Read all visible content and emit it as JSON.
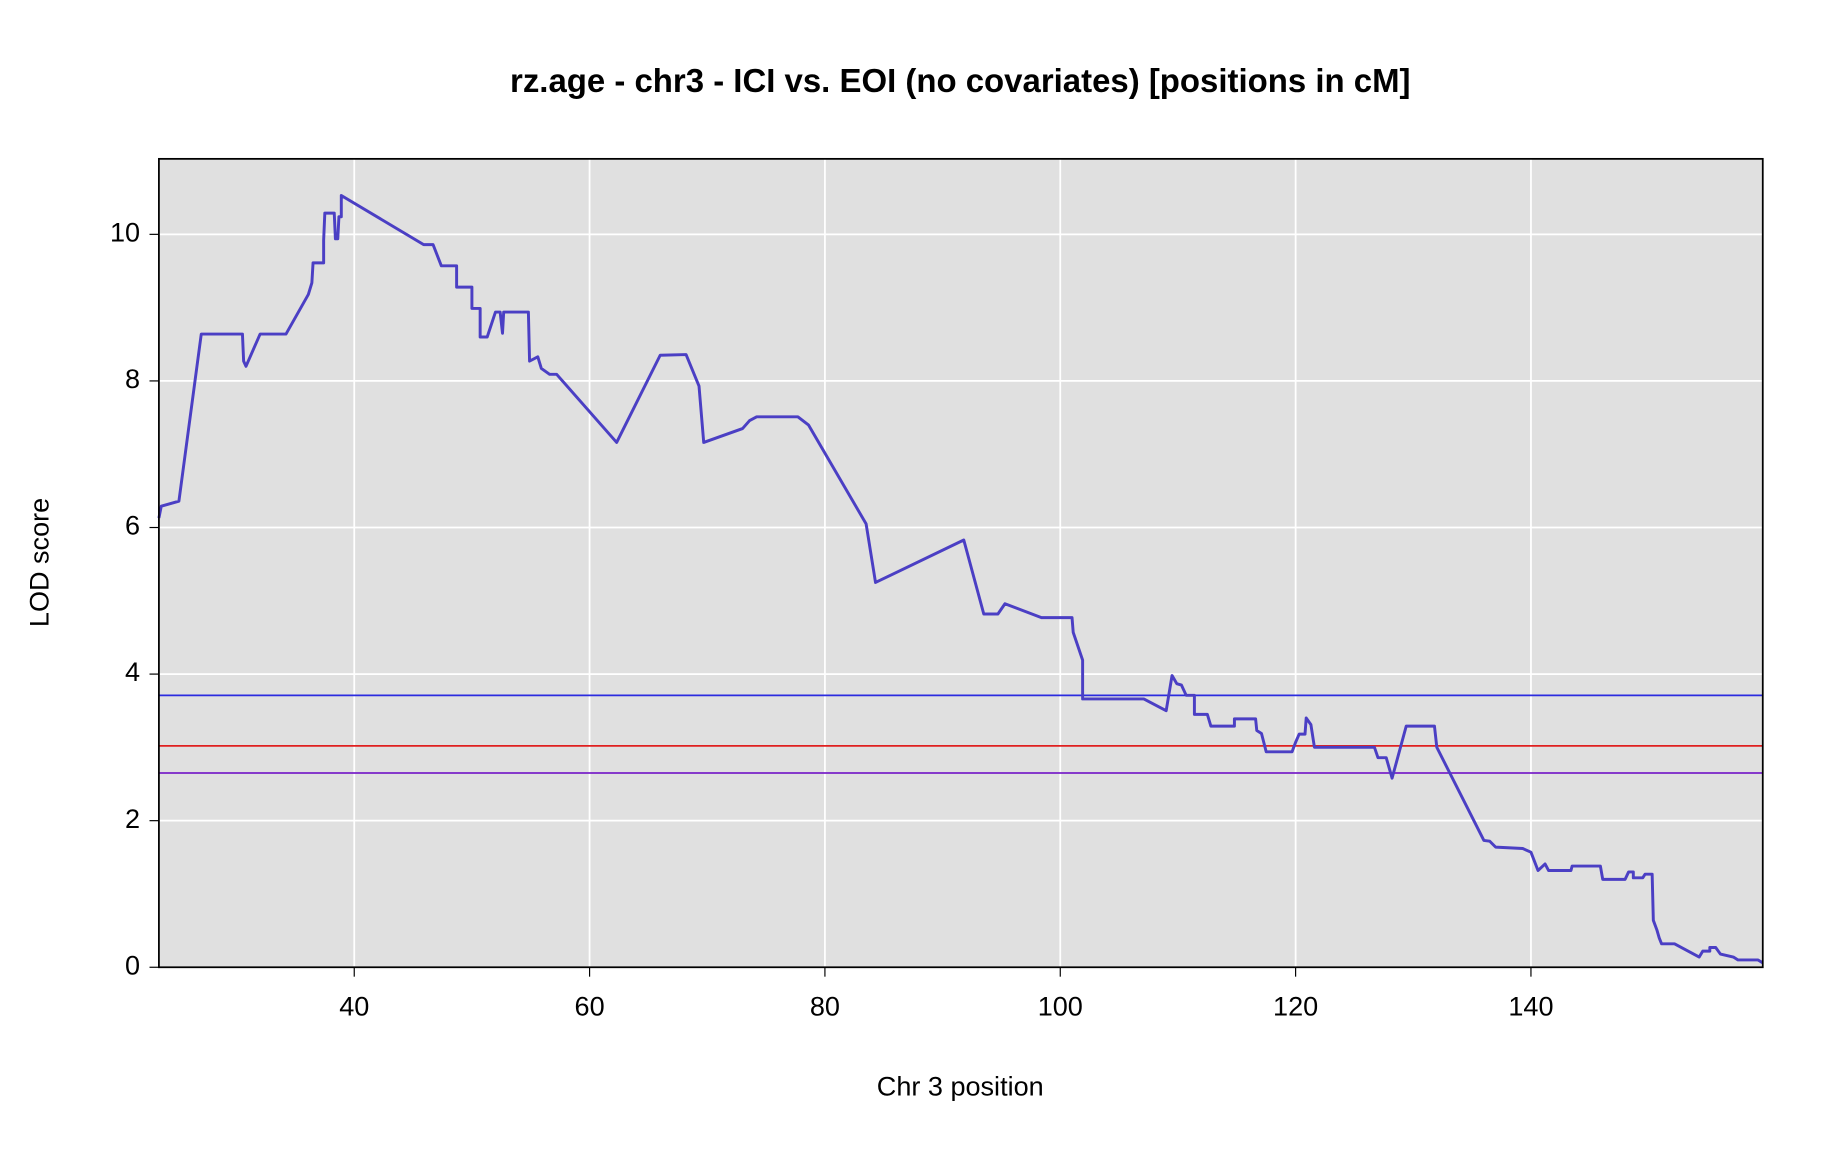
{
  "chart_data": {
    "type": "line",
    "title": "rz.age - chr3 - ICI vs. EOI (no covariates) [positions in cM]",
    "x_label": "Chr 3 position",
    "y_label": "LOD score",
    "xlim": [
      23.4,
      159.7
    ],
    "ylim": [
      0,
      11.03
    ],
    "xticks": [
      40,
      60,
      80,
      100,
      120,
      140
    ],
    "yticks": [
      0,
      2,
      4,
      6,
      8,
      10
    ],
    "grid": true,
    "background": "#e0e0e0",
    "thresholds": [
      {
        "value": 3.71,
        "color": "#2b2bdf"
      },
      {
        "value": 3.02,
        "color": "#e02020"
      },
      {
        "value": 2.65,
        "color": "#7a22c8"
      }
    ],
    "series": [
      {
        "color": "#4b3fc4",
        "x": [
          23.4,
          23.6,
          25.1,
          27.0,
          30.5,
          30.6,
          30.8,
          32.0,
          34.2,
          36.1,
          36.4,
          36.5,
          37.4,
          37.4,
          37.5,
          38.3,
          38.4,
          38.6,
          38.7,
          38.9,
          38.9,
          45.9,
          46.7,
          47.4,
          48.7,
          48.7,
          50.0,
          50.0,
          50.7,
          50.7,
          51.3,
          52.0,
          52.4,
          52.6,
          52.7,
          54.8,
          54.9,
          55.6,
          55.9,
          56.6,
          57.2,
          62.3,
          66.0,
          68.2,
          69.3,
          69.7,
          73.0,
          73.6,
          74.2,
          77.7,
          78.6,
          83.5,
          84.3,
          91.8,
          93.5,
          94.7,
          95.3,
          98.4,
          101.0,
          101.1,
          101.9,
          101.9,
          107.1,
          109.0,
          109.5,
          109.9,
          110.3,
          110.7,
          111.4,
          111.4,
          112.5,
          112.8,
          114.8,
          114.8,
          116.6,
          116.7,
          117.1,
          117.5,
          119.7,
          120.0,
          120.3,
          120.8,
          120.9,
          121.3,
          121.6,
          126.7,
          127.0,
          127.7,
          128.2,
          129.4,
          131.8,
          132.0,
          136.0,
          136.5,
          137.0,
          139.3,
          140.0,
          140.6,
          141.2,
          141.5,
          143.4,
          143.5,
          145.9,
          146.1,
          148.0,
          148.3,
          148.7,
          148.7,
          149.5,
          149.7,
          150.3,
          150.4,
          150.7,
          150.9,
          151.1,
          152.2,
          154.3,
          154.6,
          155.2,
          155.2,
          155.7,
          156.1,
          157.2,
          157.6,
          159.3,
          159.7
        ],
        "values": [
          6.13,
          6.29,
          6.36,
          8.64,
          8.64,
          8.27,
          8.2,
          8.64,
          8.64,
          9.18,
          9.34,
          9.61,
          9.61,
          9.92,
          10.29,
          10.29,
          9.94,
          9.94,
          10.24,
          10.24,
          10.53,
          9.86,
          9.86,
          9.57,
          9.57,
          9.28,
          9.28,
          8.99,
          8.99,
          8.6,
          8.6,
          8.94,
          8.94,
          8.65,
          8.94,
          8.94,
          8.27,
          8.33,
          8.17,
          8.09,
          8.09,
          7.16,
          8.35,
          8.36,
          7.93,
          7.16,
          7.35,
          7.46,
          7.51,
          7.51,
          7.4,
          6.05,
          5.25,
          5.83,
          4.82,
          4.82,
          4.96,
          4.77,
          4.77,
          4.57,
          4.19,
          3.66,
          3.66,
          3.5,
          3.98,
          3.87,
          3.85,
          3.71,
          3.71,
          3.45,
          3.45,
          3.29,
          3.29,
          3.39,
          3.39,
          3.23,
          3.19,
          2.94,
          2.94,
          3.07,
          3.18,
          3.18,
          3.4,
          3.31,
          3.0,
          3.0,
          2.86,
          2.86,
          2.58,
          3.29,
          3.29,
          3.0,
          1.73,
          1.72,
          1.64,
          1.62,
          1.57,
          1.32,
          1.41,
          1.32,
          1.32,
          1.38,
          1.38,
          1.2,
          1.2,
          1.3,
          1.3,
          1.22,
          1.22,
          1.27,
          1.27,
          0.64,
          0.51,
          0.4,
          0.32,
          0.32,
          0.14,
          0.22,
          0.22,
          0.27,
          0.27,
          0.18,
          0.14,
          0.1,
          0.1,
          0.06
        ]
      }
    ]
  }
}
